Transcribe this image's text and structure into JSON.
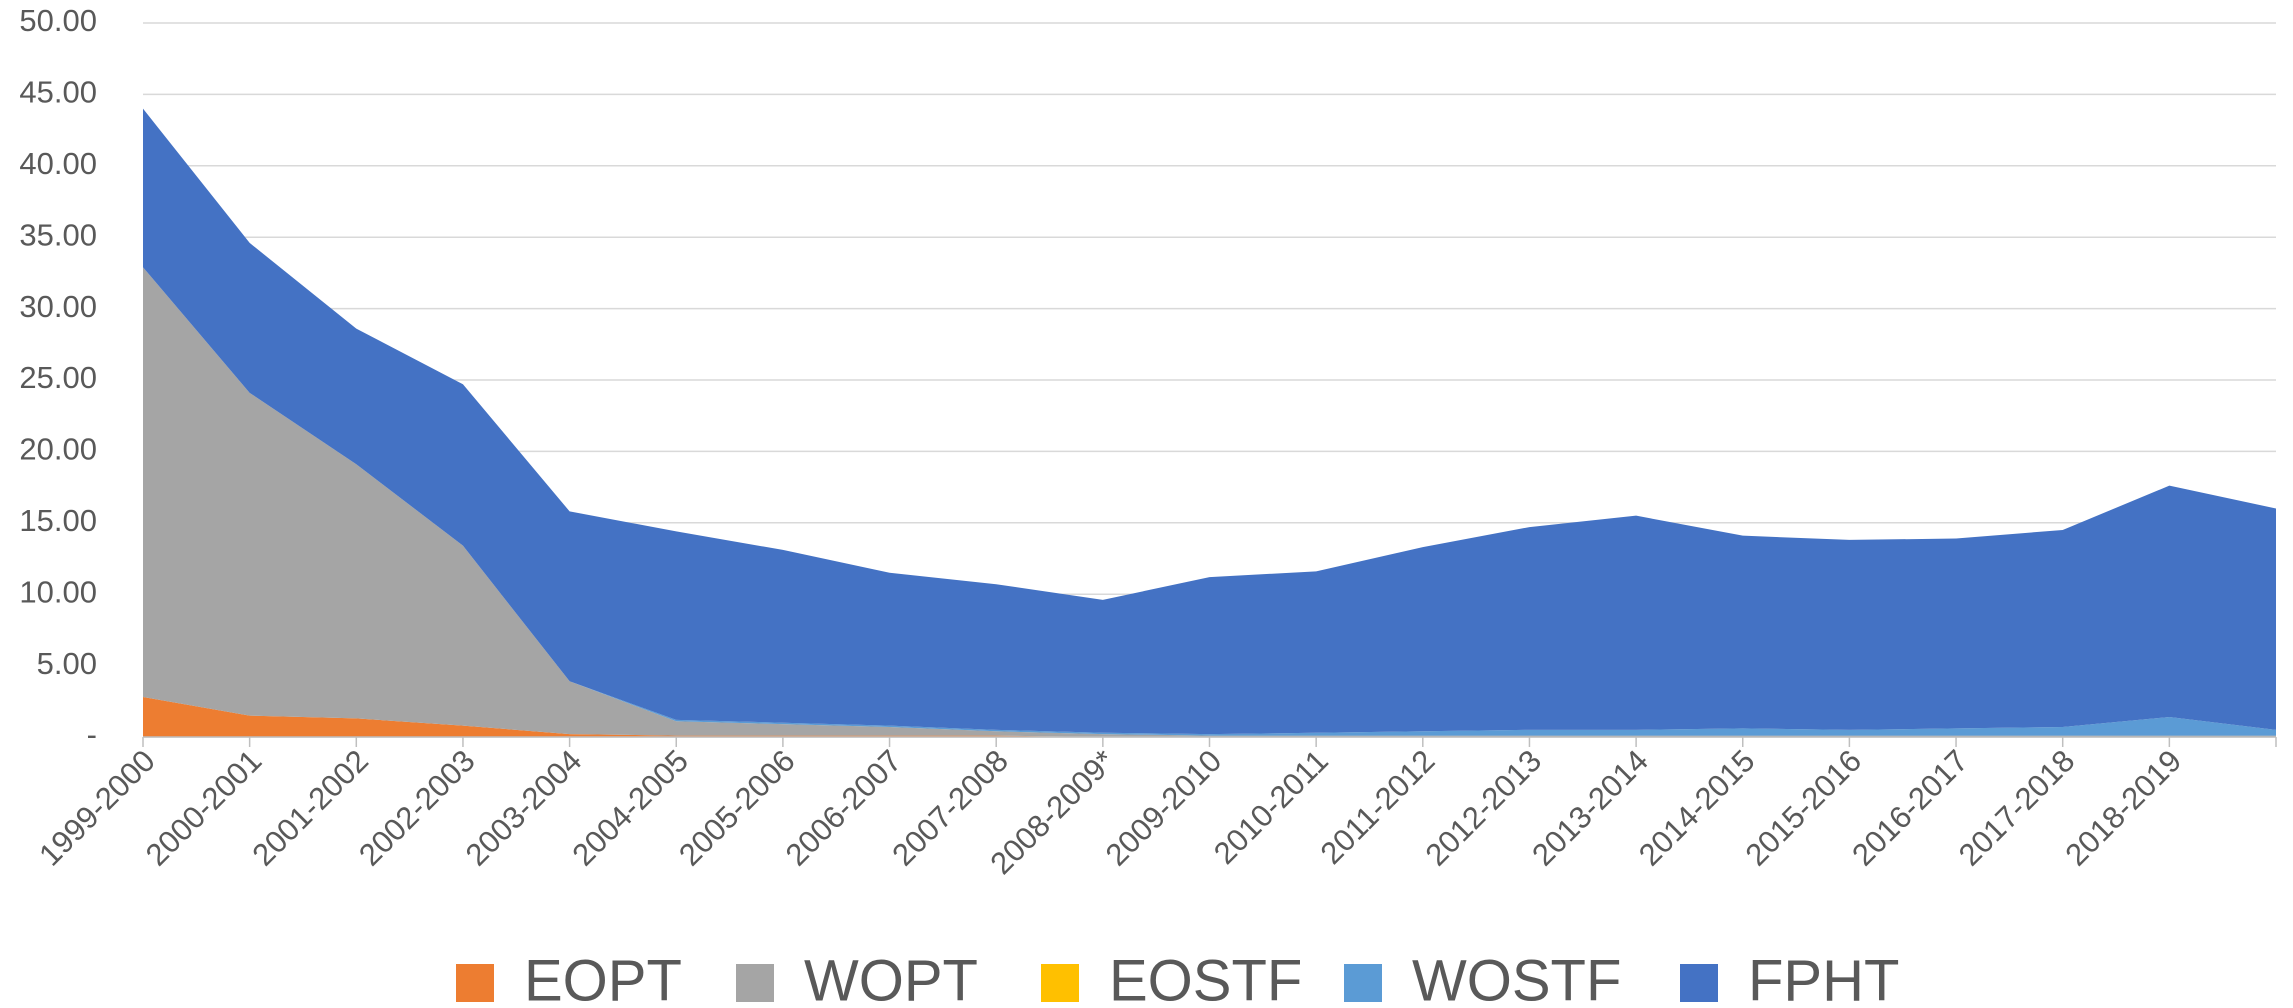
{
  "chart_data": {
    "type": "stacked_area",
    "categories": [
      "1999-2000",
      "2000-2001",
      "2001-2002",
      "2002-2003",
      "2003-2004",
      "2004-2005",
      "2005-2006",
      "2006-2007",
      "2007-2008",
      "2008-2009*",
      "2009-2010",
      "2010-2011",
      "2011-2012",
      "2012-2013",
      "2013-2014",
      "2014-2015",
      "2015-2016",
      "2016-2017",
      "2017-2018",
      "2018-2019",
      null
    ],
    "series": [
      {
        "name": "EOPT",
        "color": "#ed7d31",
        "values": [
          2.8,
          1.5,
          1.3,
          0.8,
          0.2,
          0.1,
          0.1,
          0.1,
          0.1,
          0,
          0,
          0,
          0,
          0,
          0,
          0,
          0,
          0,
          0,
          0,
          0
        ]
      },
      {
        "name": "WOPT",
        "color": "#a5a5a5",
        "values": [
          30.1,
          22.6,
          17.8,
          12.6,
          3.7,
          1.0,
          0.8,
          0.6,
          0.3,
          0.2,
          0.1,
          0.1,
          0.1,
          0.1,
          0.1,
          0.1,
          0.1,
          0.1,
          0.1,
          0.1,
          0.1
        ]
      },
      {
        "name": "EOSTF",
        "color": "#ffc000",
        "values": [
          0,
          0,
          0,
          0,
          0,
          0,
          0,
          0,
          0,
          0,
          0,
          0,
          0,
          0,
          0,
          0,
          0,
          0,
          0,
          0,
          0
        ]
      },
      {
        "name": "WOSTF",
        "color": "#5b9bd5",
        "values": [
          0,
          0,
          0,
          0,
          0,
          0.1,
          0.1,
          0.1,
          0.1,
          0.1,
          0.1,
          0.2,
          0.3,
          0.4,
          0.4,
          0.5,
          0.4,
          0.5,
          0.6,
          1.3,
          0.4
        ]
      },
      {
        "name": "FPHT",
        "color": "#4472c4",
        "values": [
          11.1,
          10.5,
          9.5,
          11.3,
          11.9,
          13.2,
          12.1,
          10.7,
          10.2,
          9.3,
          11.0,
          11.3,
          12.9,
          14.2,
          15.0,
          13.5,
          13.3,
          13.3,
          13.8,
          16.2,
          15.5
        ]
      }
    ],
    "ylim": [
      0,
      50
    ],
    "yticks": [
      {
        "value": 0,
        "label": "-"
      },
      {
        "value": 5,
        "label": "5.00"
      },
      {
        "value": 10,
        "label": "10.00"
      },
      {
        "value": 15,
        "label": "15.00"
      },
      {
        "value": 20,
        "label": "20.00"
      },
      {
        "value": 25,
        "label": "25.00"
      },
      {
        "value": 30,
        "label": "30.00"
      },
      {
        "value": 35,
        "label": "35.00"
      },
      {
        "value": 40,
        "label": "40.00"
      },
      {
        "value": 45,
        "label": "45.00"
      },
      {
        "value": 50,
        "label": "50.00"
      }
    ],
    "grid": true,
    "legend": "bottom"
  }
}
